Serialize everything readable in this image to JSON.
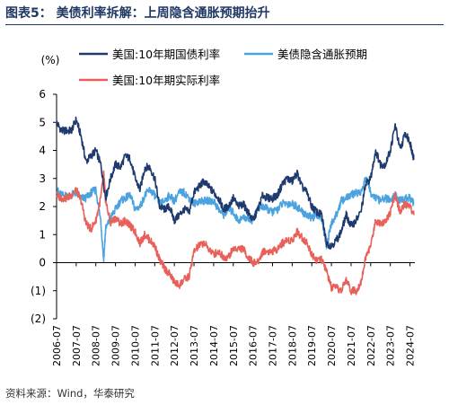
{
  "figure": {
    "label": "图表5：",
    "title": "美债利率拆解：上周隐含通胀预期抬升",
    "source": "资料来源：Wind，华泰研究"
  },
  "colors": {
    "title": "#1f3864",
    "nominal": "#1f3a6e",
    "breakeven": "#4aa3df",
    "real": "#e8605a"
  },
  "chart_data": {
    "type": "line",
    "ylabel": "(%)",
    "ylim": [
      -2,
      6
    ],
    "yticks": [
      {
        "v": 6,
        "label": "6"
      },
      {
        "v": 5,
        "label": "5"
      },
      {
        "v": 4,
        "label": "4"
      },
      {
        "v": 3,
        "label": "3"
      },
      {
        "v": 2,
        "label": "2"
      },
      {
        "v": 1,
        "label": "1"
      },
      {
        "v": 0,
        "label": "0"
      },
      {
        "v": -1,
        "label": "(1)"
      },
      {
        "v": -2,
        "label": "(2)"
      }
    ],
    "xlim": [
      2006.5,
      2024.75
    ],
    "xticks": [
      "2006-07",
      "2007-07",
      "2008-07",
      "2009-07",
      "2010-07",
      "2011-07",
      "2012-07",
      "2013-07",
      "2014-07",
      "2015-07",
      "2016-07",
      "2017-07",
      "2018-07",
      "2019-07",
      "2020-07",
      "2021-07",
      "2022-07",
      "2023-07",
      "2024-07"
    ],
    "grid": false,
    "legend_position": "top",
    "series": [
      {
        "name": "美国:10年期国债利率",
        "color": "#1f3a6e",
        "x": [
          2006.5,
          2006.75,
          2007.0,
          2007.25,
          2007.5,
          2007.75,
          2008.0,
          2008.25,
          2008.5,
          2008.75,
          2009.0,
          2009.25,
          2009.5,
          2009.75,
          2010.0,
          2010.25,
          2010.5,
          2010.75,
          2011.0,
          2011.25,
          2011.5,
          2011.75,
          2012.0,
          2012.25,
          2012.5,
          2012.75,
          2013.0,
          2013.25,
          2013.5,
          2013.75,
          2014.0,
          2014.25,
          2014.5,
          2014.75,
          2015.0,
          2015.25,
          2015.5,
          2015.75,
          2016.0,
          2016.25,
          2016.5,
          2016.75,
          2017.0,
          2017.25,
          2017.5,
          2017.75,
          2018.0,
          2018.25,
          2018.5,
          2018.75,
          2019.0,
          2019.25,
          2019.5,
          2019.75,
          2020.0,
          2020.25,
          2020.5,
          2020.75,
          2021.0,
          2021.25,
          2021.5,
          2021.75,
          2022.0,
          2022.25,
          2022.5,
          2022.75,
          2023.0,
          2023.25,
          2023.5,
          2023.75,
          2024.0,
          2024.25,
          2024.5,
          2024.6,
          2024.7
        ],
        "y": [
          5.0,
          4.7,
          4.7,
          4.7,
          5.1,
          4.5,
          3.6,
          3.8,
          4.0,
          3.5,
          2.3,
          3.0,
          3.5,
          3.4,
          3.8,
          3.7,
          3.0,
          2.6,
          3.4,
          3.4,
          3.0,
          2.0,
          1.9,
          2.0,
          1.5,
          1.7,
          1.9,
          1.8,
          2.5,
          2.7,
          2.9,
          2.7,
          2.5,
          2.3,
          1.9,
          2.0,
          2.3,
          2.0,
          2.1,
          1.8,
          1.5,
          1.9,
          2.4,
          2.3,
          2.3,
          2.4,
          2.8,
          3.0,
          2.9,
          3.2,
          2.7,
          2.5,
          2.0,
          1.8,
          1.7,
          0.7,
          0.6,
          0.8,
          1.1,
          1.7,
          1.3,
          1.5,
          1.8,
          2.8,
          3.0,
          4.0,
          3.5,
          3.5,
          4.0,
          4.9,
          4.0,
          4.6,
          4.3,
          4.0,
          3.7
        ]
      },
      {
        "name": "美债隐含通胀预期",
        "color": "#4aa3df",
        "x": [
          2006.5,
          2006.75,
          2007.0,
          2007.25,
          2007.5,
          2007.75,
          2008.0,
          2008.25,
          2008.5,
          2008.75,
          2008.9,
          2009.0,
          2009.25,
          2009.5,
          2009.75,
          2010.0,
          2010.25,
          2010.5,
          2010.75,
          2011.0,
          2011.25,
          2011.5,
          2011.75,
          2012.0,
          2012.25,
          2012.5,
          2012.75,
          2013.0,
          2013.25,
          2013.5,
          2013.75,
          2014.0,
          2014.25,
          2014.5,
          2014.75,
          2015.0,
          2015.25,
          2015.5,
          2015.75,
          2016.0,
          2016.25,
          2016.5,
          2016.75,
          2017.0,
          2017.25,
          2017.5,
          2017.75,
          2018.0,
          2018.25,
          2018.5,
          2018.75,
          2019.0,
          2019.25,
          2019.5,
          2019.75,
          2020.0,
          2020.25,
          2020.5,
          2020.75,
          2021.0,
          2021.25,
          2021.5,
          2021.75,
          2022.0,
          2022.25,
          2022.5,
          2022.75,
          2023.0,
          2023.25,
          2023.5,
          2023.75,
          2024.0,
          2024.25,
          2024.5,
          2024.7
        ],
        "y": [
          2.6,
          2.4,
          2.4,
          2.4,
          2.5,
          2.3,
          2.3,
          2.5,
          2.6,
          1.5,
          0.1,
          1.2,
          1.6,
          1.9,
          2.2,
          2.3,
          2.4,
          1.9,
          2.0,
          2.4,
          2.6,
          2.4,
          2.1,
          2.2,
          2.4,
          2.2,
          2.5,
          2.5,
          2.3,
          2.1,
          2.2,
          2.2,
          2.2,
          2.2,
          1.9,
          1.7,
          1.9,
          1.8,
          1.5,
          1.6,
          1.6,
          1.5,
          1.9,
          2.0,
          1.9,
          1.8,
          1.9,
          2.1,
          2.1,
          2.1,
          2.0,
          1.8,
          1.7,
          1.6,
          1.7,
          1.6,
          0.6,
          1.4,
          1.7,
          2.2,
          2.3,
          2.4,
          2.5,
          2.5,
          3.0,
          2.5,
          2.3,
          2.2,
          2.3,
          2.2,
          2.4,
          2.2,
          2.3,
          2.3,
          2.1
        ]
      },
      {
        "name": "美国:10年期实际利率",
        "color": "#e8605a",
        "x": [
          2006.5,
          2006.75,
          2007.0,
          2007.25,
          2007.5,
          2007.75,
          2008.0,
          2008.25,
          2008.5,
          2008.75,
          2008.9,
          2009.0,
          2009.25,
          2009.5,
          2009.75,
          2010.0,
          2010.25,
          2010.5,
          2010.75,
          2011.0,
          2011.25,
          2011.5,
          2011.75,
          2012.0,
          2012.25,
          2012.5,
          2012.75,
          2013.0,
          2013.25,
          2013.5,
          2013.75,
          2014.0,
          2014.25,
          2014.5,
          2014.75,
          2015.0,
          2015.25,
          2015.5,
          2015.75,
          2016.0,
          2016.25,
          2016.5,
          2016.75,
          2017.0,
          2017.25,
          2017.5,
          2017.75,
          2018.0,
          2018.25,
          2018.5,
          2018.75,
          2019.0,
          2019.25,
          2019.5,
          2019.75,
          2020.0,
          2020.25,
          2020.5,
          2020.75,
          2021.0,
          2021.25,
          2021.5,
          2021.75,
          2022.0,
          2022.25,
          2022.5,
          2022.75,
          2023.0,
          2023.25,
          2023.5,
          2023.75,
          2024.0,
          2024.25,
          2024.5,
          2024.7
        ],
        "y": [
          2.4,
          2.3,
          2.3,
          2.4,
          2.6,
          2.2,
          1.4,
          1.2,
          1.5,
          2.3,
          3.2,
          2.2,
          1.4,
          1.6,
          1.4,
          1.5,
          1.3,
          1.1,
          0.7,
          1.0,
          0.8,
          0.6,
          0.1,
          -0.2,
          -0.4,
          -0.7,
          -0.8,
          -0.6,
          -0.5,
          0.4,
          0.6,
          0.7,
          0.5,
          0.3,
          0.4,
          0.2,
          0.2,
          0.5,
          0.5,
          0.5,
          0.2,
          0.0,
          0.0,
          0.4,
          0.4,
          0.4,
          0.5,
          0.7,
          0.8,
          0.8,
          1.1,
          0.9,
          0.7,
          0.3,
          0.1,
          0.1,
          -0.3,
          -0.9,
          -0.9,
          -1.0,
          -0.6,
          -1.0,
          -1.0,
          -0.7,
          0.2,
          0.6,
          1.5,
          1.4,
          1.5,
          1.8,
          2.4,
          1.8,
          2.1,
          2.0,
          1.7
        ]
      }
    ]
  }
}
